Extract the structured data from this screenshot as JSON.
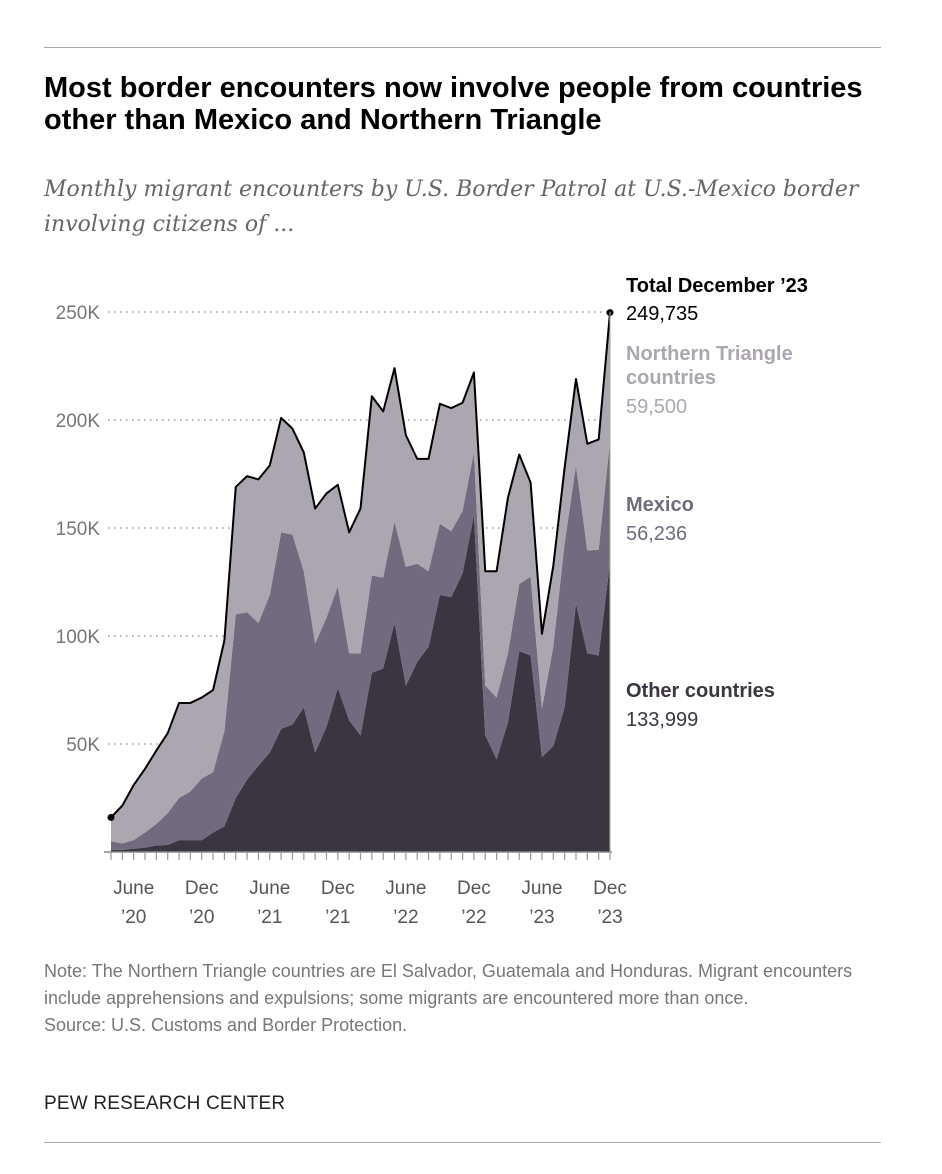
{
  "title": "Most border encounters now involve people from countries other than Mexico and Northern Triangle",
  "subtitle": "Monthly migrant encounters by U.S. Border Patrol at U.S.-Mexico border involving citizens of ...",
  "notes": [
    "Note: The Northern Triangle countries are El Salvador, Guatemala and Honduras. Migrant encounters include apprehensions and expulsions; some migrants are encountered more than once.",
    "Source: U.S. Customs and Border Protection."
  ],
  "brand": "PEW RESEARCH CENTER",
  "colors": {
    "other": "#3b3542",
    "mexico": "#726a7e",
    "northern_triangle": "#aca6b1",
    "total_line": "#000000"
  },
  "chart_data": {
    "type": "area",
    "stacked": true,
    "x_start": "April 2020",
    "x_end": "December 2023",
    "months": 45,
    "ylim": [
      0,
      250000
    ],
    "yticks": [
      50000,
      100000,
      150000,
      200000,
      250000
    ],
    "ytick_labels": [
      "50K",
      "100K",
      "150K",
      "200K",
      "250K"
    ],
    "xtick_labels": [
      {
        "month_index": 2,
        "line1": "June",
        "line2": "’20"
      },
      {
        "month_index": 8,
        "line1": "Dec",
        "line2": "’20"
      },
      {
        "month_index": 14,
        "line1": "June",
        "line2": "’21"
      },
      {
        "month_index": 20,
        "line1": "Dec",
        "line2": "’21"
      },
      {
        "month_index": 26,
        "line1": "June",
        "line2": "’22"
      },
      {
        "month_index": 32,
        "line1": "Dec",
        "line2": "’22"
      },
      {
        "month_index": 38,
        "line1": "June",
        "line2": "’23"
      },
      {
        "month_index": 44,
        "line1": "Dec",
        "line2": "’23"
      }
    ],
    "grid": "dotted horizontal",
    "series": [
      {
        "key": "other",
        "name": "Other countries",
        "label_value": "133,999",
        "values": [
          1000,
          1000,
          1500,
          2000,
          3000,
          3300,
          5500,
          5500,
          5500,
          9000,
          12000,
          25000,
          33500,
          40000,
          46000,
          57000,
          59000,
          67000,
          46000,
          58000,
          76000,
          61000,
          54000,
          83000,
          85000,
          106000,
          77000,
          88000,
          95000,
          119000,
          118000,
          129000,
          156000,
          54000,
          43000,
          60000,
          93000,
          91000,
          44000,
          49000,
          67000,
          115000,
          92000,
          91000,
          133999
        ]
      },
      {
        "key": "mexico",
        "name": "Mexico",
        "label_value": "56,236",
        "values": [
          4000,
          3000,
          4000,
          7000,
          10000,
          14700,
          19500,
          22500,
          28500,
          28000,
          44000,
          85000,
          77500,
          66000,
          73000,
          91000,
          88000,
          63000,
          50500,
          50500,
          47000,
          31000,
          38000,
          45000,
          42000,
          47000,
          55000,
          45500,
          35000,
          33000,
          30500,
          29000,
          29000,
          23000,
          28500,
          32000,
          31000,
          36500,
          22500,
          46000,
          76000,
          64000,
          47500,
          49000,
          56236
        ]
      },
      {
        "key": "northern_triangle",
        "name": "Northern Triangle countries",
        "name_line1": "Northern Triangle",
        "name_line2": "countries",
        "label_value": "59,500",
        "values": [
          11000,
          17500,
          25500,
          29500,
          34000,
          37000,
          44000,
          41000,
          37500,
          38000,
          42000,
          59000,
          63000,
          66500,
          60000,
          53000,
          49000,
          55000,
          62500,
          57500,
          47000,
          56000,
          67000,
          83000,
          77000,
          71000,
          61000,
          48500,
          52000,
          55500,
          57000,
          50000,
          37000,
          53000,
          58500,
          72000,
          60000,
          43500,
          34500,
          37500,
          35000,
          40000,
          49500,
          51000,
          59500
        ]
      }
    ],
    "total_annotation": {
      "label": "Total December ’23",
      "value": "249,735"
    }
  }
}
